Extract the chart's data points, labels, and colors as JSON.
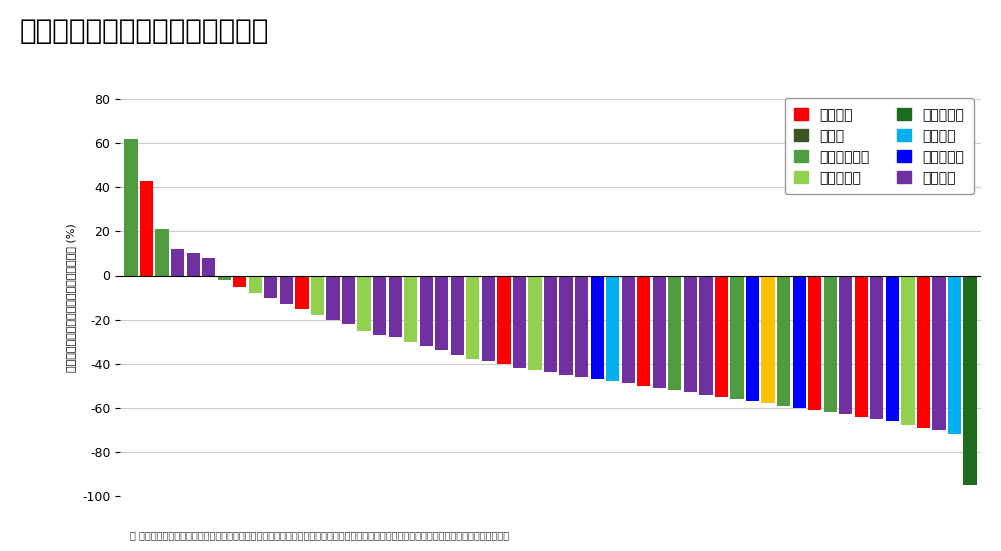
{
  "title": "がん種別の腫瘍径和の最大変化率",
  "ylabel": "ベースラインからの腫瘍径和の最大変化率 (%)",
  "footnote": "＊ その他のがん種：胃がん、大腸がん、胆道がん、小腸がん、非小細胞肺がん、乳房外パジェット病、悪性黒色腫、前立線がん、原発不明がん",
  "ylim": [
    -100,
    80
  ],
  "yticks": [
    -100,
    -80,
    -60,
    -40,
    -20,
    0,
    20,
    40,
    60,
    80
  ],
  "legend_items": [
    {
      "label": "食道がん",
      "color": "#FF0000"
    },
    {
      "label": "肺がん",
      "color": "#375623"
    },
    {
      "label": "尿路上皮がん",
      "color": "#4E9C3F"
    },
    {
      "label": "子宮頸がん",
      "color": "#92D050"
    },
    {
      "label": "子宮体がん",
      "color": "#1E6B1E"
    },
    {
      "label": "卵巣がん",
      "color": "#00B0F0"
    },
    {
      "label": "唾液腺がん",
      "color": "#0000FF"
    },
    {
      "label": "その他＊",
      "color": "#7030A0"
    }
  ],
  "bars": [
    {
      "value": 62,
      "color": "#4E9C3F"
    },
    {
      "value": 43,
      "color": "#FF0000"
    },
    {
      "value": 21,
      "color": "#4E9C3F"
    },
    {
      "value": 12,
      "color": "#7030A0"
    },
    {
      "value": 10,
      "color": "#7030A0"
    },
    {
      "value": 8,
      "color": "#7030A0"
    },
    {
      "value": -2,
      "color": "#4E9C3F"
    },
    {
      "value": -5,
      "color": "#FF0000"
    },
    {
      "value": -8,
      "color": "#92D050"
    },
    {
      "value": -10,
      "color": "#7030A0"
    },
    {
      "value": -13,
      "color": "#7030A0"
    },
    {
      "value": -15,
      "color": "#FF0000"
    },
    {
      "value": -18,
      "color": "#92D050"
    },
    {
      "value": -20,
      "color": "#7030A0"
    },
    {
      "value": -22,
      "color": "#7030A0"
    },
    {
      "value": -25,
      "color": "#92D050"
    },
    {
      "value": -27,
      "color": "#7030A0"
    },
    {
      "value": -28,
      "color": "#7030A0"
    },
    {
      "value": -30,
      "color": "#92D050"
    },
    {
      "value": -32,
      "color": "#7030A0"
    },
    {
      "value": -34,
      "color": "#7030A0"
    },
    {
      "value": -36,
      "color": "#7030A0"
    },
    {
      "value": -38,
      "color": "#92D050"
    },
    {
      "value": -39,
      "color": "#7030A0"
    },
    {
      "value": -40,
      "color": "#FF0000"
    },
    {
      "value": -42,
      "color": "#7030A0"
    },
    {
      "value": -43,
      "color": "#92D050"
    },
    {
      "value": -44,
      "color": "#7030A0"
    },
    {
      "value": -45,
      "color": "#7030A0"
    },
    {
      "value": -46,
      "color": "#7030A0"
    },
    {
      "value": -47,
      "color": "#0000FF"
    },
    {
      "value": -48,
      "color": "#00B0F0"
    },
    {
      "value": -49,
      "color": "#7030A0"
    },
    {
      "value": -50,
      "color": "#FF0000"
    },
    {
      "value": -51,
      "color": "#7030A0"
    },
    {
      "value": -52,
      "color": "#4E9C3F"
    },
    {
      "value": -53,
      "color": "#7030A0"
    },
    {
      "value": -54,
      "color": "#7030A0"
    },
    {
      "value": -55,
      "color": "#FF0000"
    },
    {
      "value": -56,
      "color": "#4E9C3F"
    },
    {
      "value": -57,
      "color": "#0000FF"
    },
    {
      "value": -58,
      "color": "#FFC000"
    },
    {
      "value": -59,
      "color": "#4E9C3F"
    },
    {
      "value": -60,
      "color": "#0000FF"
    },
    {
      "value": -61,
      "color": "#FF0000"
    },
    {
      "value": -62,
      "color": "#4E9C3F"
    },
    {
      "value": -63,
      "color": "#7030A0"
    },
    {
      "value": -64,
      "color": "#FF0000"
    },
    {
      "value": -65,
      "color": "#7030A0"
    },
    {
      "value": -66,
      "color": "#0000FF"
    },
    {
      "value": -68,
      "color": "#92D050"
    },
    {
      "value": -69,
      "color": "#FF0000"
    },
    {
      "value": -70,
      "color": "#7030A0"
    },
    {
      "value": -72,
      "color": "#00B0F0"
    },
    {
      "value": -95,
      "color": "#1E6B1E"
    }
  ],
  "background_color": "#FFFFFF",
  "title_fontsize": 20,
  "axis_fontsize": 10,
  "legend_fontsize": 10
}
